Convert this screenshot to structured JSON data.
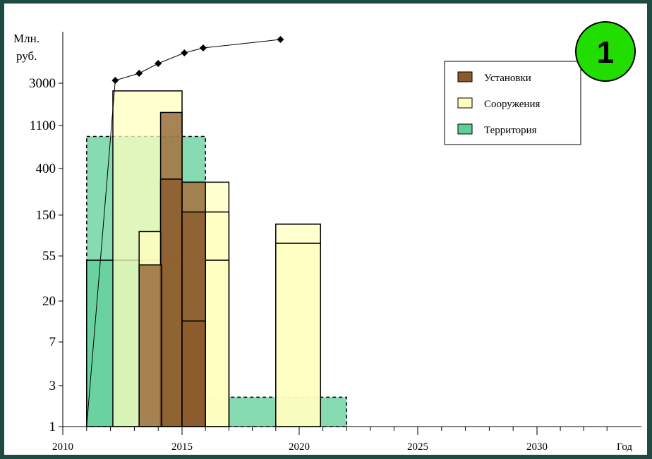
{
  "chart_data": {
    "type": "bar",
    "badge": "1",
    "ylabel": [
      "Млн.",
      "руб."
    ],
    "xlabel": "Год",
    "yscale": "log",
    "ylim": [
      1,
      10000
    ],
    "xlim": [
      2010,
      2030
    ],
    "yticks": [
      1,
      3,
      7,
      20,
      55,
      150,
      400,
      1100,
      3000
    ],
    "xticks": [
      2010,
      2015,
      2020,
      2025,
      2030
    ],
    "legend": {
      "placement": "top-right",
      "items": [
        {
          "label": "Установки",
          "color": "#8b5a2b"
        },
        {
          "label": "Сооружения",
          "color": "#ffffc0"
        },
        {
          "label": "Территория",
          "color": "#5fcf98"
        }
      ]
    },
    "series": [
      {
        "name": "Территория",
        "color": "#5fcf98",
        "bars": [
          {
            "x0": 2011.0,
            "x1": 2016.0,
            "value": 850,
            "dashed": true
          },
          {
            "x0": 2011.0,
            "x1": 2015.0,
            "value": 50,
            "dashed": false
          },
          {
            "x0": 2016.0,
            "x1": 2022.0,
            "value": 2.2,
            "dashed": true
          }
        ]
      },
      {
        "name": "Сооружения",
        "color": "#ffffc0",
        "bars": [
          {
            "x0": 2012.1,
            "x1": 2015.0,
            "value": 2500
          },
          {
            "x0": 2013.2,
            "x1": 2014.15,
            "value": 100
          },
          {
            "x0": 2015.0,
            "x1": 2017.0,
            "value": 300
          },
          {
            "x0": 2016.0,
            "x1": 2017.0,
            "value": 160
          },
          {
            "x0": 2016.0,
            "x1": 2017.0,
            "value": 50
          },
          {
            "x0": 2019.0,
            "x1": 2020.9,
            "value": 120
          },
          {
            "x0": 2019.0,
            "x1": 2020.9,
            "value": 75
          }
        ]
      },
      {
        "name": "Установки",
        "color": "#8b5a2b",
        "bars": [
          {
            "x0": 2014.1,
            "x1": 2015.0,
            "value": 1500
          },
          {
            "x0": 2014.1,
            "x1": 2015.0,
            "value": 320
          },
          {
            "x0": 2015.0,
            "x1": 2016.0,
            "value": 300
          },
          {
            "x0": 2015.0,
            "x1": 2016.0,
            "value": 160
          },
          {
            "x0": 2015.0,
            "x1": 2016.0,
            "value": 12
          },
          {
            "x0": 2013.2,
            "x1": 2014.15,
            "value": 45
          }
        ]
      },
      {
        "name": "",
        "type": "line",
        "x": [
          2011.0,
          2012.2,
          2013.2,
          2014.0,
          2015.1,
          2015.9,
          2019.2
        ],
        "y": [
          1,
          3000,
          3000,
          3000,
          3000,
          3000,
          3000
        ]
      }
    ]
  }
}
